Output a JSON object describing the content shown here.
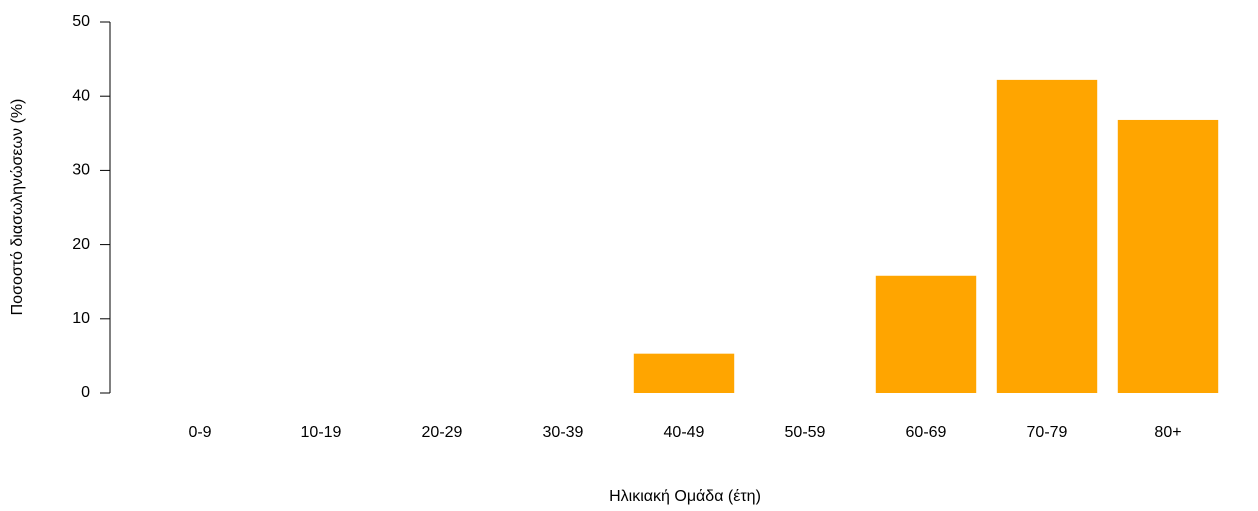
{
  "chart_data": {
    "type": "bar",
    "x_label": "Ηλικιακή Ομάδα (έτη)",
    "y_label": "Ποσοστό διασωληνώσεων (%)",
    "categories": [
      "0-9",
      "10-19",
      "20-29",
      "30-39",
      "40-49",
      "50-59",
      "60-69",
      "70-79",
      "80+"
    ],
    "values": [
      0,
      0,
      0,
      0,
      5.3,
      0,
      15.8,
      42.2,
      36.8
    ],
    "color": "#ffa500",
    "ylim": [
      0,
      50
    ],
    "yticks": [
      0,
      10,
      20,
      30,
      40,
      50
    ],
    "grid": false
  }
}
